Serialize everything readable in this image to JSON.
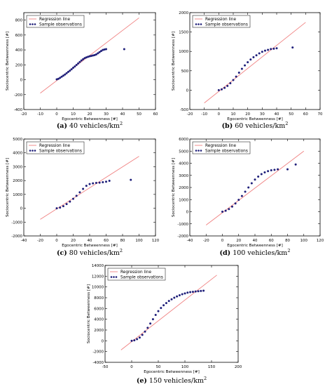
{
  "figure": {
    "legend": {
      "regression": "Regression line",
      "samples": "Sample observations"
    },
    "colors": {
      "regression": "#f08080",
      "samples": "#1f1f7a",
      "axis": "#000000"
    }
  },
  "chart_data": [
    {
      "type": "scatter",
      "caption_label": "(a)",
      "caption_text": "40 vehicles/km",
      "caption_sup": "2",
      "xlabel": "Egocentric Betweenness [#]",
      "ylabel": "Sociocentric Betweenness [#]",
      "xlim": [
        -20,
        60
      ],
      "ylim": [
        -400,
        900
      ],
      "xticks": [
        -20,
        -10,
        0,
        10,
        20,
        30,
        40,
        50,
        60
      ],
      "yticks": [
        -400,
        -200,
        0,
        200,
        400,
        600,
        800
      ],
      "regression": {
        "x": [
          -10,
          50
        ],
        "y": [
          -180,
          830
        ]
      },
      "series": [
        {
          "points": [
            [
              0,
              5
            ],
            [
              1,
              12
            ],
            [
              2,
              25
            ],
            [
              3,
              40
            ],
            [
              4,
              55
            ],
            [
              5,
              70
            ],
            [
              6,
              88
            ],
            [
              7,
              105
            ],
            [
              8,
              122
            ],
            [
              9,
              140
            ],
            [
              10,
              160
            ],
            [
              11,
              178
            ],
            [
              12,
              198
            ],
            [
              13,
              218
            ],
            [
              14,
              238
            ],
            [
              15,
              258
            ],
            [
              16,
              275
            ],
            [
              17,
              290
            ],
            [
              18,
              300
            ],
            [
              19,
              308
            ],
            [
              20,
              315
            ],
            [
              21,
              320
            ],
            [
              22,
              325
            ],
            [
              23,
              330
            ],
            [
              24,
              340
            ],
            [
              25,
              355
            ],
            [
              26,
              370
            ],
            [
              27,
              385
            ],
            [
              28,
              400
            ],
            [
              29,
              405
            ],
            [
              30,
              410
            ],
            [
              41,
              410
            ]
          ]
        }
      ],
      "legend_position": "top-left"
    },
    {
      "type": "scatter",
      "caption_label": "(b)",
      "caption_text": "60 vehicles/km",
      "caption_sup": "2",
      "xlabel": "Egocentric Betweenness [#]",
      "ylabel": "Sociocentric Betweenness [#]",
      "xlim": [
        -20,
        70
      ],
      "ylim": [
        -500,
        2000
      ],
      "xticks": [
        -20,
        -10,
        0,
        10,
        20,
        30,
        40,
        50,
        60,
        70
      ],
      "yticks": [
        -500,
        0,
        500,
        1000,
        1500,
        2000
      ],
      "regression": {
        "x": [
          -10,
          60
        ],
        "y": [
          -330,
          1750
        ]
      },
      "series": [
        {
          "points": [
            [
              0,
              0
            ],
            [
              2,
              20
            ],
            [
              4,
              60
            ],
            [
              6,
              110
            ],
            [
              8,
              180
            ],
            [
              10,
              260
            ],
            [
              12,
              350
            ],
            [
              14,
              450
            ],
            [
              16,
              550
            ],
            [
              18,
              640
            ],
            [
              20,
              720
            ],
            [
              22,
              790
            ],
            [
              24,
              850
            ],
            [
              26,
              900
            ],
            [
              28,
              950
            ],
            [
              30,
              990
            ],
            [
              32,
              1020
            ],
            [
              34,
              1040
            ],
            [
              36,
              1060
            ],
            [
              38,
              1070
            ],
            [
              40,
              1080
            ],
            [
              51,
              1100
            ]
          ]
        }
      ],
      "legend_position": "top-left"
    },
    {
      "type": "scatter",
      "caption_label": "(c)",
      "caption_text": "80 vehicles/km",
      "caption_sup": "2",
      "xlabel": "Egocentric Betweenness [#]",
      "ylabel": "Sociocentric Betweenness [#]",
      "xlim": [
        -40,
        120
      ],
      "ylim": [
        -2000,
        5000
      ],
      "xticks": [
        -40,
        -20,
        0,
        20,
        40,
        60,
        80,
        100,
        120
      ],
      "yticks": [
        -2000,
        -1000,
        0,
        1000,
        2000,
        3000,
        4000,
        5000
      ],
      "regression": {
        "x": [
          -20,
          100
        ],
        "y": [
          -800,
          3750
        ]
      },
      "series": [
        {
          "points": [
            [
              0,
              0
            ],
            [
              4,
              50
            ],
            [
              8,
              150
            ],
            [
              12,
              300
            ],
            [
              16,
              480
            ],
            [
              20,
              680
            ],
            [
              24,
              900
            ],
            [
              28,
              1150
            ],
            [
              32,
              1400
            ],
            [
              36,
              1620
            ],
            [
              40,
              1750
            ],
            [
              44,
              1800
            ],
            [
              48,
              1830
            ],
            [
              52,
              1850
            ],
            [
              56,
              1880
            ],
            [
              60,
              1920
            ],
            [
              64,
              1980
            ],
            [
              90,
              2050
            ]
          ]
        }
      ],
      "legend_position": "top-left"
    },
    {
      "type": "scatter",
      "caption_label": "(d)",
      "caption_text": "100 vehicles/km",
      "caption_sup": "2",
      "xlabel": "Egocentric Betweenness [#]",
      "ylabel": "Sociocentric Betweenness [#]",
      "xlim": [
        -40,
        120
      ],
      "ylim": [
        -2000,
        6000
      ],
      "xticks": [
        -40,
        -20,
        0,
        20,
        40,
        60,
        80,
        100,
        120
      ],
      "yticks": [
        -2000,
        -1000,
        0,
        1000,
        2000,
        3000,
        4000,
        5000,
        6000
      ],
      "regression": {
        "x": [
          -20,
          100
        ],
        "y": [
          -1100,
          5000
        ]
      },
      "series": [
        {
          "points": [
            [
              0,
              0
            ],
            [
              4,
              80
            ],
            [
              8,
              220
            ],
            [
              12,
              420
            ],
            [
              16,
              680
            ],
            [
              20,
              980
            ],
            [
              24,
              1300
            ],
            [
              28,
              1650
            ],
            [
              32,
              2000
            ],
            [
              36,
              2350
            ],
            [
              40,
              2650
            ],
            [
              44,
              2900
            ],
            [
              48,
              3100
            ],
            [
              52,
              3250
            ],
            [
              56,
              3350
            ],
            [
              60,
              3420
            ],
            [
              64,
              3460
            ],
            [
              68,
              3500
            ],
            [
              80,
              3500
            ],
            [
              90,
              3900
            ]
          ]
        }
      ],
      "legend_position": "top-left"
    },
    {
      "type": "scatter",
      "caption_label": "(e)",
      "caption_text": "150 vehicles/km",
      "caption_sup": "2",
      "xlabel": "Egocentric Betweenness [#]",
      "ylabel": "Sociocentric Betweenness [#]",
      "xlim": [
        -50,
        200
      ],
      "ylim": [
        -4000,
        14000
      ],
      "xticks": [
        -50,
        0,
        50,
        100,
        150,
        200
      ],
      "yticks": [
        -4000,
        -2000,
        0,
        2000,
        4000,
        6000,
        8000,
        10000,
        12000,
        14000
      ],
      "regression": {
        "x": [
          -20,
          160
        ],
        "y": [
          -1700,
          12200
        ]
      },
      "series": [
        {
          "points": [
            [
              0,
              0
            ],
            [
              5,
              100
            ],
            [
              10,
              300
            ],
            [
              15,
              600
            ],
            [
              20,
              1100
            ],
            [
              25,
              1700
            ],
            [
              30,
              2400
            ],
            [
              35,
              3200
            ],
            [
              40,
              4000
            ],
            [
              45,
              4800
            ],
            [
              50,
              5500
            ],
            [
              55,
              6100
            ],
            [
              60,
              6600
            ],
            [
              65,
              7000
            ],
            [
              70,
              7400
            ],
            [
              75,
              7700
            ],
            [
              80,
              8000
            ],
            [
              85,
              8250
            ],
            [
              90,
              8450
            ],
            [
              95,
              8650
            ],
            [
              100,
              8800
            ],
            [
              105,
              8950
            ],
            [
              110,
              9050
            ],
            [
              115,
              9100
            ],
            [
              120,
              9150
            ],
            [
              125,
              9200
            ],
            [
              130,
              9250
            ],
            [
              135,
              9300
            ]
          ]
        }
      ],
      "legend_position": "top-left"
    }
  ]
}
